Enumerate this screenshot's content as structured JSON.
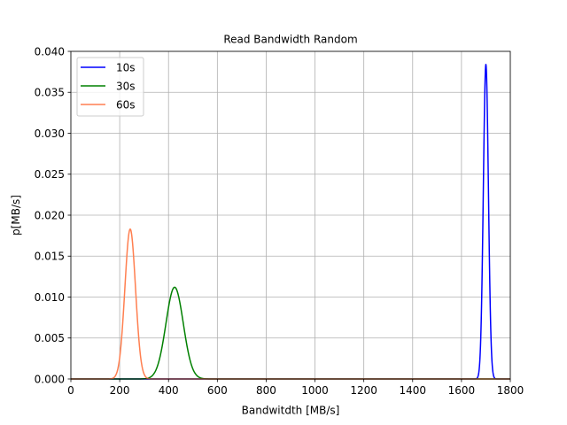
{
  "chart_data": {
    "type": "line",
    "title": "Read Bandwidth Random",
    "xlabel": "Bandwitdth [MB/s]",
    "ylabel": "p[MB/s]",
    "xlim": [
      0,
      1800
    ],
    "ylim": [
      0,
      0.04
    ],
    "xticks": [
      0,
      200,
      400,
      600,
      800,
      1000,
      1200,
      1400,
      1600,
      1800
    ],
    "xtick_labels": [
      "0",
      "200",
      "400",
      "600",
      "800",
      "1000",
      "1200",
      "1400",
      "1600",
      "1800"
    ],
    "yticks": [
      0,
      0.005,
      0.01,
      0.015,
      0.02,
      0.025,
      0.03,
      0.035,
      0.04
    ],
    "ytick_labels": [
      "0.000",
      "0.005",
      "0.010",
      "0.015",
      "0.020",
      "0.025",
      "0.030",
      "0.035",
      "0.040"
    ],
    "grid": true,
    "legend_position": "top-left",
    "series": [
      {
        "name": "10s",
        "color": "#0000ff",
        "distribution": "normal",
        "mean": 1700,
        "std": 10.4,
        "peak": 0.0384
      },
      {
        "name": "30s",
        "color": "#008000",
        "distribution": "normal",
        "mean": 425,
        "std": 35.5,
        "peak": 0.0112
      },
      {
        "name": "60s",
        "color": "#ff7f50",
        "distribution": "normal",
        "mean": 243,
        "std": 21.8,
        "peak": 0.0183
      }
    ]
  }
}
